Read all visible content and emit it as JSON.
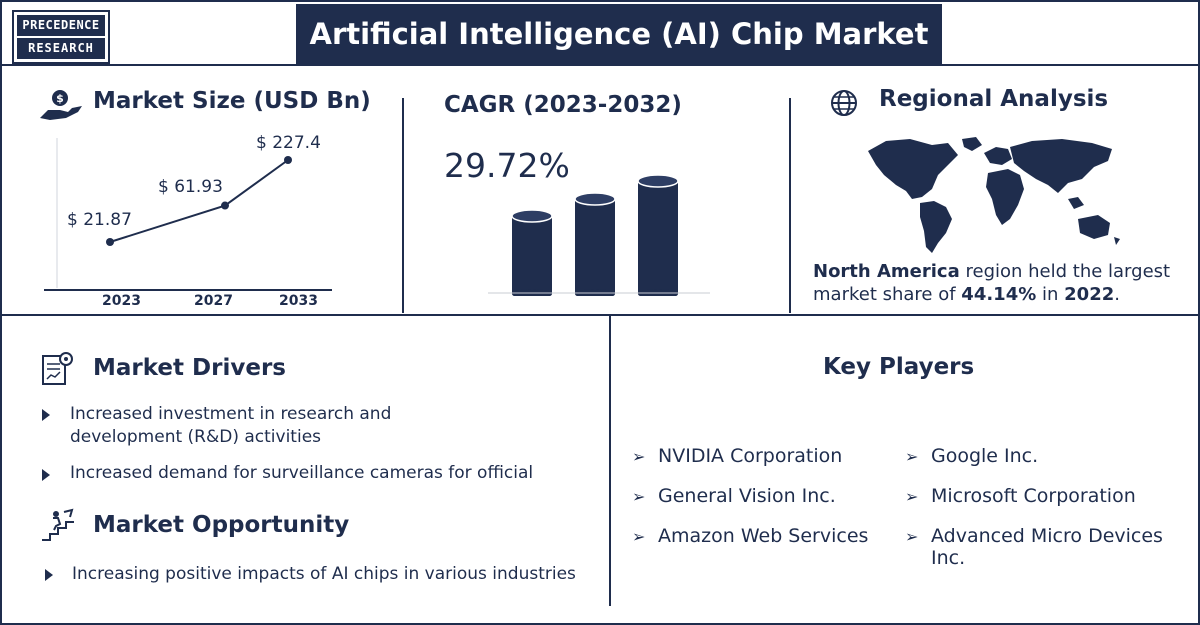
{
  "logo": {
    "line1": "PRECEDENCE",
    "line2": "RESEARCH"
  },
  "title": "Artificial Intelligence (AI) Chip Market",
  "market_size": {
    "heading": "Market Size (USD Bn)",
    "points": [
      {
        "year": "2023",
        "label": "$ 21.87",
        "value": 21.87
      },
      {
        "year": "2027",
        "label": "$ 61.93",
        "value": 61.93
      },
      {
        "year": "2033",
        "label": "$ 227.4",
        "value": 227.4
      }
    ]
  },
  "chart_data": {
    "type": "line",
    "categories": [
      "2023",
      "2027",
      "2033"
    ],
    "values": [
      21.87,
      61.93,
      227.4
    ],
    "title": "Market Size (USD Bn)"
  },
  "cagr": {
    "heading": "CAGR (2023-2032)",
    "value": "29.72%"
  },
  "regional": {
    "heading": "Regional Analysis",
    "region": "North America",
    "text_1": " region held the largest market share of ",
    "share": "44.14%",
    "text_2": " in ",
    "year": "2022",
    "text_3": "."
  },
  "drivers": {
    "heading": "Market Drivers",
    "items": [
      "Increased investment in research and development  (R&D) activities",
      "Increased demand for surveillance cameras for official"
    ]
  },
  "opportunity": {
    "heading": "Market Opportunity",
    "items": [
      "Increasing positive impacts of AI chips in various industries"
    ]
  },
  "players": {
    "heading": "Key Players",
    "left": [
      "NVIDIA Corporation",
      "General Vision Inc.",
      "Amazon Web Services"
    ],
    "right": [
      "Google Inc.",
      "Microsoft Corporation",
      "Advanced Micro Devices Inc."
    ]
  },
  "colors": {
    "navy": "#1f2d4d"
  }
}
